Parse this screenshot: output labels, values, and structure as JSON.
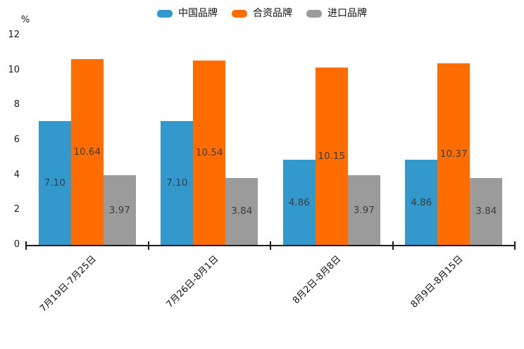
{
  "chart_data": {
    "type": "bar",
    "title": "",
    "unit_label": "%",
    "categories": [
      "7月19日-7月25日",
      "7月26日-8月1日",
      "8月2日-8月8日",
      "8月9日-8月15日"
    ],
    "series": [
      {
        "name": "中国品牌",
        "color": "#3398CB",
        "values": [
          7.1,
          7.1,
          4.86,
          4.86
        ]
      },
      {
        "name": "合资品牌",
        "color": "#FF6D00",
        "values": [
          10.64,
          10.54,
          10.15,
          10.37
        ]
      },
      {
        "name": "进口品牌",
        "color": "#9B9B9B",
        "values": [
          3.97,
          3.84,
          3.97,
          3.84
        ]
      }
    ],
    "value_labels": [
      [
        "7.10",
        "10.64",
        "3.97"
      ],
      [
        "7.10",
        "10.54",
        "3.84"
      ],
      [
        "4.86",
        "10.15",
        "3.97"
      ],
      [
        "4.86",
        "10.37",
        "3.84"
      ]
    ],
    "ylim": [
      0,
      12
    ],
    "y_ticks": [
      "0",
      "2",
      "4",
      "6",
      "8",
      "10",
      "12"
    ],
    "grid": false,
    "legend_position": "top",
    "axis_color": "#1a1a1a",
    "label_color": "#3d3d3d"
  }
}
